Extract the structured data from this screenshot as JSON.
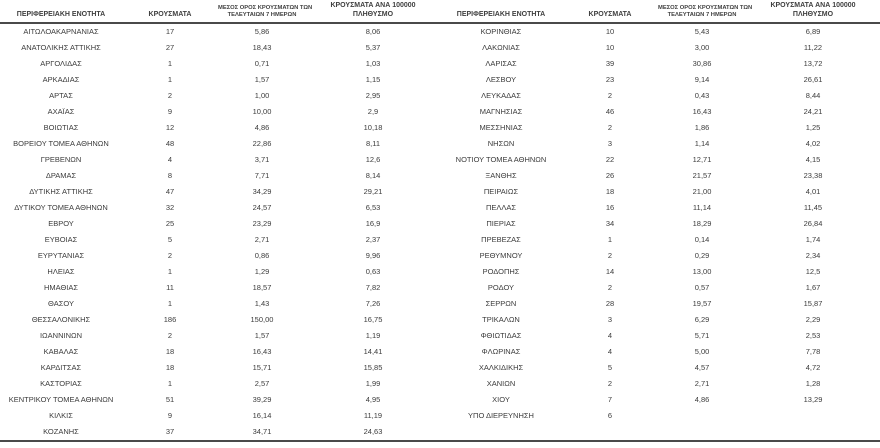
{
  "table": {
    "headers": {
      "region": "ΠΕΡΙΦΕΡΕΙΑΚΗ ΕΝΟΤΗΤΑ",
      "cases": "ΚΡΟΥΣΜΑΤΑ",
      "avg7_line1": "ΜΕΣΟΣ ΟΡΟΣ ΚΡΟΥΣΜΑΤΩΝ ΤΩΝ",
      "avg7_line2": "ΤΕΛΕΥΤΑΙΩΝ 7 ΗΜΕΡΩΝ",
      "per100k_line1": "ΚΡΟΥΣΜΑΤΑ ΑΝΑ 100000",
      "per100k_line2": "ΠΛΗΘΥΣΜΟ"
    },
    "left_rows": [
      [
        "ΑΙΤΩΛΟΑΚΑΡΝΑΝΙΑΣ",
        "17",
        "5,86",
        "8,06"
      ],
      [
        "ΑΝΑΤΟΛΙΚΗΣ ΑΤΤΙΚΗΣ",
        "27",
        "18,43",
        "5,37"
      ],
      [
        "ΑΡΓΟΛΙΔΑΣ",
        "1",
        "0,71",
        "1,03"
      ],
      [
        "ΑΡΚΑΔΙΑΣ",
        "1",
        "1,57",
        "1,15"
      ],
      [
        "ΑΡΤΑΣ",
        "2",
        "1,00",
        "2,95"
      ],
      [
        "ΑΧΑΪΑΣ",
        "9",
        "10,00",
        "2,9"
      ],
      [
        "ΒΟΙΩΤΙΑΣ",
        "12",
        "4,86",
        "10,18"
      ],
      [
        "ΒΟΡΕΙΟΥ ΤΟΜΕΑ ΑΘΗΝΩΝ",
        "48",
        "22,86",
        "8,11"
      ],
      [
        "ΓΡΕΒΕΝΩΝ",
        "4",
        "3,71",
        "12,6"
      ],
      [
        "ΔΡΑΜΑΣ",
        "8",
        "7,71",
        "8,14"
      ],
      [
        "ΔΥΤΙΚΗΣ ΑΤΤΙΚΗΣ",
        "47",
        "34,29",
        "29,21"
      ],
      [
        "ΔΥΤΙΚΟΥ ΤΟΜΕΑ ΑΘΗΝΩΝ",
        "32",
        "24,57",
        "6,53"
      ],
      [
        "ΕΒΡΟΥ",
        "25",
        "23,29",
        "16,9"
      ],
      [
        "ΕΥΒΟΙΑΣ",
        "5",
        "2,71",
        "2,37"
      ],
      [
        "ΕΥΡΥΤΑΝΙΑΣ",
        "2",
        "0,86",
        "9,96"
      ],
      [
        "ΗΛΕΙΑΣ",
        "1",
        "1,29",
        "0,63"
      ],
      [
        "ΗΜΑΘΙΑΣ",
        "11",
        "18,57",
        "7,82"
      ],
      [
        "ΘΑΣΟΥ",
        "1",
        "1,43",
        "7,26"
      ],
      [
        "ΘΕΣΣΑΛΟΝΙΚΗΣ",
        "186",
        "150,00",
        "16,75"
      ],
      [
        "ΙΩΑΝΝΙΝΩΝ",
        "2",
        "1,57",
        "1,19"
      ],
      [
        "ΚΑΒΑΛΑΣ",
        "18",
        "16,43",
        "14,41"
      ],
      [
        "ΚΑΡΔΙΤΣΑΣ",
        "18",
        "15,71",
        "15,85"
      ],
      [
        "ΚΑΣΤΟΡΙΑΣ",
        "1",
        "2,57",
        "1,99"
      ],
      [
        "ΚΕΝΤΡΙΚΟΥ ΤΟΜΕΑ ΑΘΗΝΩΝ",
        "51",
        "39,29",
        "4,95"
      ],
      [
        "ΚΙΛΚΙΣ",
        "9",
        "16,14",
        "11,19"
      ],
      [
        "ΚΟΖΑΝΗΣ",
        "37",
        "34,71",
        "24,63"
      ]
    ],
    "right_rows": [
      [
        "ΚΟΡΙΝΘΙΑΣ",
        "10",
        "5,43",
        "6,89"
      ],
      [
        "ΛΑΚΩΝΙΑΣ",
        "10",
        "3,00",
        "11,22"
      ],
      [
        "ΛΑΡΙΣΑΣ",
        "39",
        "30,86",
        "13,72"
      ],
      [
        "ΛΕΣΒΟΥ",
        "23",
        "9,14",
        "26,61"
      ],
      [
        "ΛΕΥΚΑΔΑΣ",
        "2",
        "0,43",
        "8,44"
      ],
      [
        "ΜΑΓΝΗΣΙΑΣ",
        "46",
        "16,43",
        "24,21"
      ],
      [
        "ΜΕΣΣΗΝΙΑΣ",
        "2",
        "1,86",
        "1,25"
      ],
      [
        "ΝΗΣΩΝ",
        "3",
        "1,14",
        "4,02"
      ],
      [
        "ΝΟΤΙΟΥ ΤΟΜΕΑ ΑΘΗΝΩΝ",
        "22",
        "12,71",
        "4,15"
      ],
      [
        "ΞΑΝΘΗΣ",
        "26",
        "21,57",
        "23,38"
      ],
      [
        "ΠΕΙΡΑΙΩΣ",
        "18",
        "21,00",
        "4,01"
      ],
      [
        "ΠΕΛΛΑΣ",
        "16",
        "11,14",
        "11,45"
      ],
      [
        "ΠΙΕΡΙΑΣ",
        "34",
        "18,29",
        "26,84"
      ],
      [
        "ΠΡΕΒΕΖΑΣ",
        "1",
        "0,14",
        "1,74"
      ],
      [
        "ΡΕΘΥΜΝΟΥ",
        "2",
        "0,29",
        "2,34"
      ],
      [
        "ΡΟΔΟΠΗΣ",
        "14",
        "13,00",
        "12,5"
      ],
      [
        "ΡΟΔΟΥ",
        "2",
        "0,57",
        "1,67"
      ],
      [
        "ΣΕΡΡΩΝ",
        "28",
        "19,57",
        "15,87"
      ],
      [
        "ΤΡΙΚΑΛΩΝ",
        "3",
        "6,29",
        "2,29"
      ],
      [
        "ΦΘΙΩΤΙΔΑΣ",
        "4",
        "5,71",
        "2,53"
      ],
      [
        "ΦΛΩΡΙΝΑΣ",
        "4",
        "5,00",
        "7,78"
      ],
      [
        "ΧΑΛΚΙΔΙΚΗΣ",
        "5",
        "4,57",
        "4,72"
      ],
      [
        "ΧΑΝΙΩΝ",
        "2",
        "2,71",
        "1,28"
      ],
      [
        "ΧΙΟΥ",
        "7",
        "4,86",
        "13,29"
      ],
      [
        "ΥΠΟ ΔΙΕΡΕΥΝΗΣΗ",
        "6",
        "",
        ""
      ]
    ]
  },
  "colors": {
    "text": "#3c3c3c",
    "rule": "#4a4a4a"
  }
}
